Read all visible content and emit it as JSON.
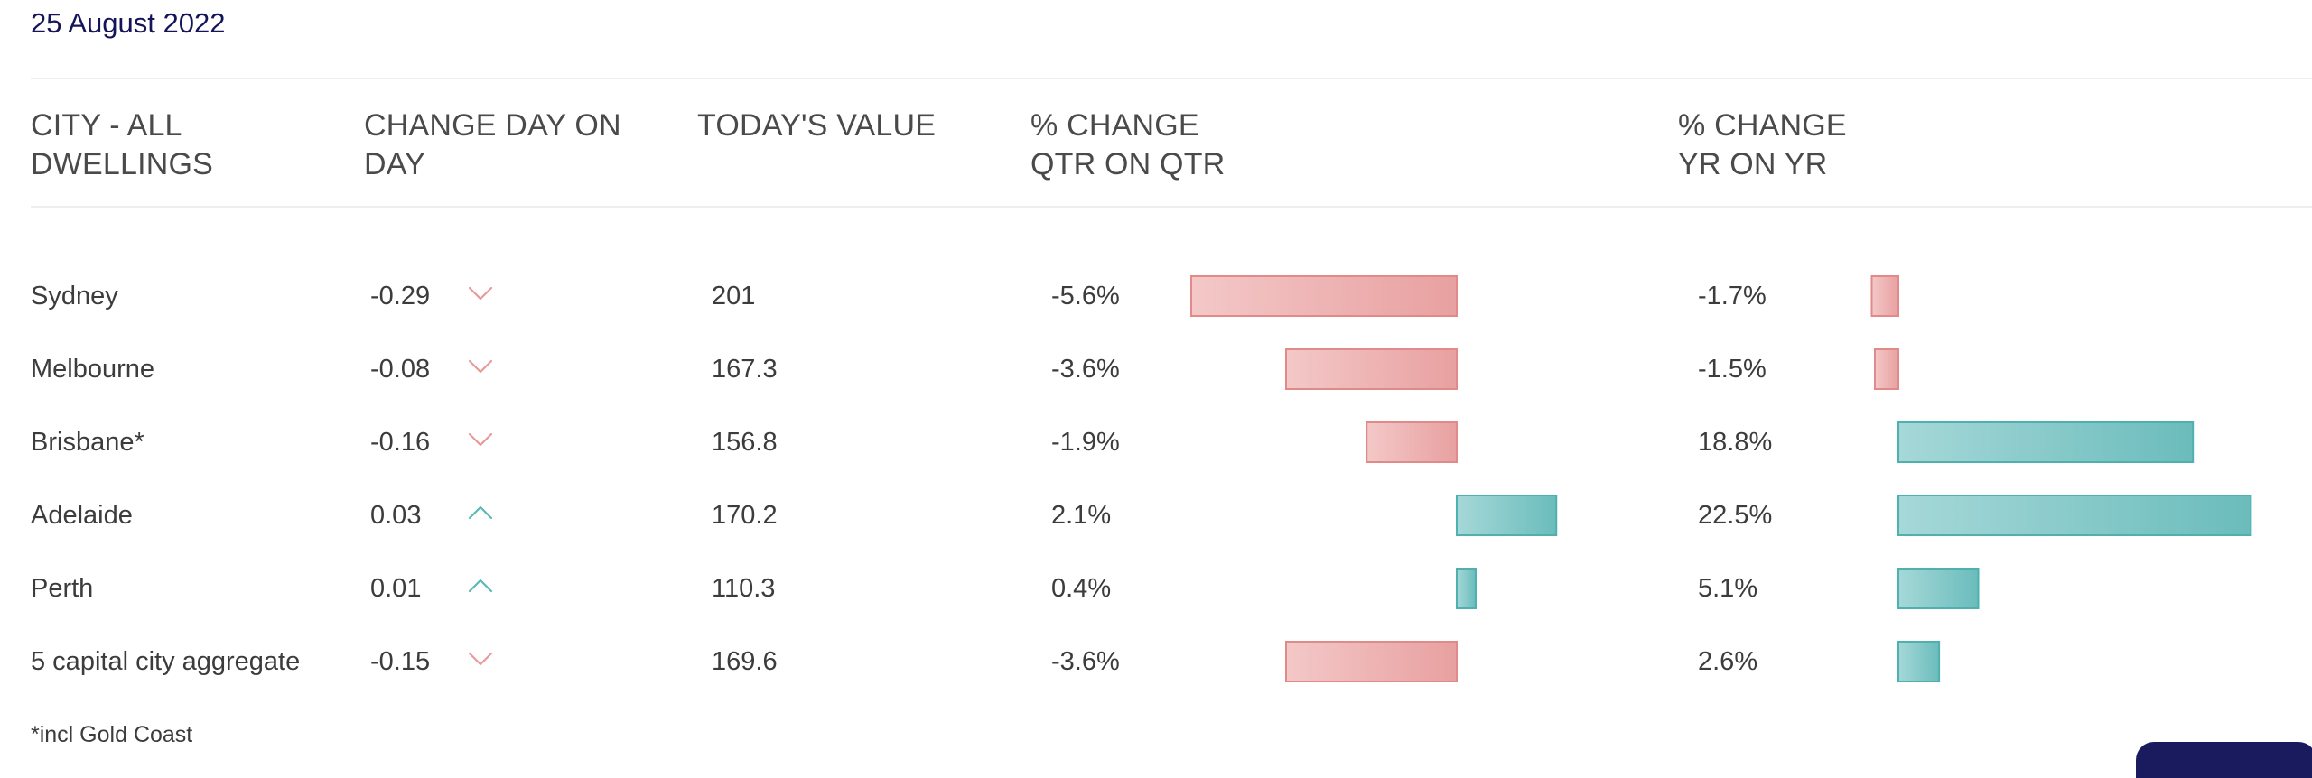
{
  "date": "25 August 2022",
  "headers": {
    "city": [
      "CITY - ALL",
      "DWELLINGS"
    ],
    "change_day": [
      "CHANGE DAY ON",
      "DAY"
    ],
    "todays_value": [
      "TODAY'S VALUE"
    ],
    "qtr": [
      "% CHANGE",
      "QTR ON QTR"
    ],
    "yr": [
      "% CHANGE",
      "YR ON YR"
    ]
  },
  "rows": [
    {
      "city": "Sydney",
      "day_change": "-0.29",
      "direction": "down",
      "value": "201",
      "qtr_label": "-5.6%",
      "qtr": -5.6,
      "yr_label": "-1.7%",
      "yr": -1.7
    },
    {
      "city": "Melbourne",
      "day_change": "-0.08",
      "direction": "down",
      "value": "167.3",
      "qtr_label": "-3.6%",
      "qtr": -3.6,
      "yr_label": "-1.5%",
      "yr": -1.5
    },
    {
      "city": "Brisbane*",
      "day_change": "-0.16",
      "direction": "down",
      "value": "156.8",
      "qtr_label": "-1.9%",
      "qtr": -1.9,
      "yr_label": "18.8%",
      "yr": 18.8
    },
    {
      "city": "Adelaide",
      "day_change": "0.03",
      "direction": "up",
      "value": "170.2",
      "qtr_label": "2.1%",
      "qtr": 2.1,
      "yr_label": "22.5%",
      "yr": 22.5
    },
    {
      "city": "Perth",
      "day_change": "0.01",
      "direction": "up",
      "value": "110.3",
      "qtr_label": "0.4%",
      "qtr": 0.4,
      "yr_label": "5.1%",
      "yr": 5.1
    },
    {
      "city": "5 capital city aggregate",
      "day_change": "-0.15",
      "direction": "down",
      "value": "169.6",
      "qtr_label": "-3.6%",
      "qtr": -3.6,
      "yr_label": "2.6%",
      "yr": 2.6
    }
  ],
  "footnote": "*incl Gold Coast",
  "colors": {
    "negative": "#e8a0a0",
    "negative_light": "#f4c8c8",
    "negative_border": "#e08a8a",
    "positive": "#6bbcbc",
    "positive_light": "#a6d8d8",
    "positive_border": "#4fb0b0",
    "down_chevron": "#e89a9a",
    "up_chevron": "#5ab8b8"
  }
}
